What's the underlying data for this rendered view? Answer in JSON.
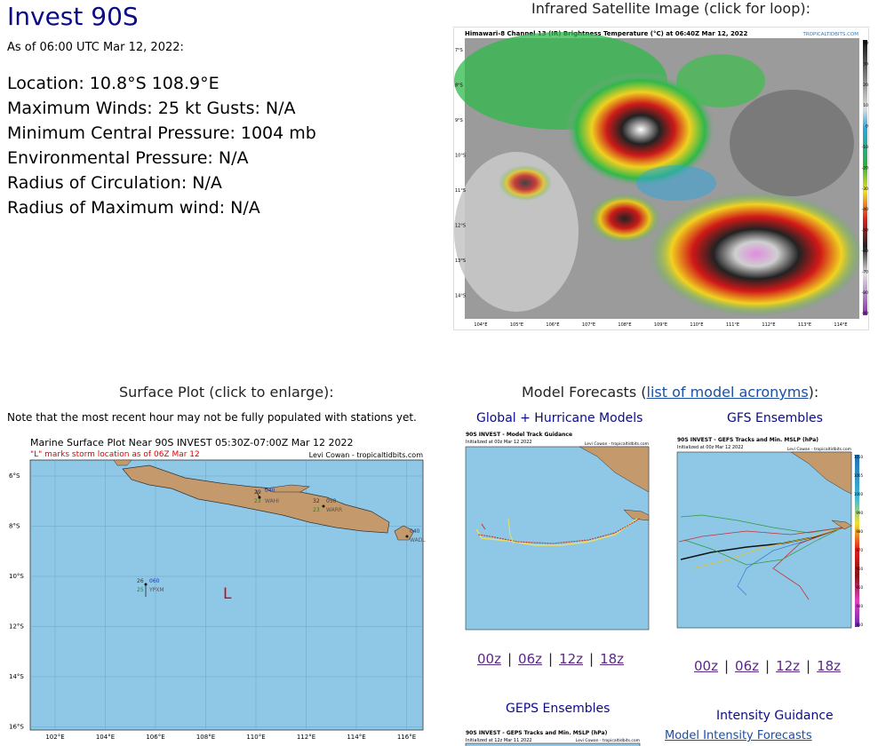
{
  "storm": {
    "title": "Invest 90S",
    "as_of": "As of 06:00 UTC Mar 12, 2022:",
    "location": "Location: 10.8°S 108.9°E",
    "winds": "Maximum Winds: 25 kt  Gusts: N/A",
    "pressure": "Minimum Central Pressure: 1004 mb",
    "env_pressure": "Environmental Pressure: N/A",
    "radius_circ": "Radius of Circulation: N/A",
    "radius_max": "Radius of Maximum wind: N/A"
  },
  "satellite": {
    "heading": "Infrared Satellite Image (click for loop):",
    "image_title": "Himawari-8 Channel 13 (IR) Brightness Temperature (°C) at 06:40Z Mar 12, 2022",
    "credit": "TROPICALTIDBITS.COM",
    "lat_labels": [
      "7°S",
      "8°S",
      "9°S",
      "10°S",
      "11°S",
      "12°S",
      "13°S",
      "14°S"
    ],
    "lon_labels": [
      "104°E",
      "105°E",
      "106°E",
      "107°E",
      "108°E",
      "109°E",
      "110°E",
      "111°E",
      "112°E",
      "113°E",
      "114°E"
    ],
    "scale_labels": [
      "40",
      "30",
      "20",
      "10",
      "0",
      "-10",
      "-20",
      "-30",
      "-40",
      "-50",
      "-60",
      "-70",
      "-80",
      "-90"
    ]
  },
  "surface": {
    "heading": "Surface Plot (click to enlarge):",
    "note": "Note that the most recent hour may not be fully populated with stations yet.",
    "plot_title": "Marine Surface Plot Near 90S INVEST 05:30Z-07:00Z Mar 12 2022",
    "plot_subtitle": "\"L\" marks storm location as of 06Z Mar 12",
    "credit": "Levi Cowan - tropicaltidbits.com",
    "storm_marker": "L",
    "lat_labels": [
      "6°S",
      "8°S",
      "10°S",
      "12°S",
      "14°S",
      "16°S"
    ],
    "lon_labels": [
      "102°E",
      "104°E",
      "106°E",
      "108°E",
      "110°E",
      "112°E",
      "114°E",
      "116°E"
    ],
    "stations": [
      {
        "id": "WAHI",
        "t": "29",
        "d": "23",
        "p": "040"
      },
      {
        "id": "WARR",
        "t": "32",
        "d": "23",
        "p": "050"
      },
      {
        "id": "YPXM",
        "t": "26",
        "d": "25",
        "p": "060"
      },
      {
        "id": "WADL",
        "t": "",
        "d": "",
        "p": "040"
      }
    ]
  },
  "models": {
    "heading_prefix": "Model Forecasts (",
    "heading_link": "list of model acronyms",
    "heading_suffix": "):",
    "global_title": "Global + Hurricane Models",
    "gfs_title": "GFS Ensembles",
    "geps_title": "GEPS Ensembles",
    "intensity_title": "Intensity Guidance",
    "intensity_link": "Model Intensity Forecasts",
    "runs": [
      "00z",
      "06z",
      "12z",
      "18z"
    ],
    "track_title": "90S INVEST - Model Track Guidance",
    "track_init": "Initialized at 00z Mar 12 2022",
    "gfs_map_title": "90S INVEST - GEFS Tracks and Min. MSLP (hPa)",
    "gfs_init": "Initialized at 00z Mar 12 2022",
    "geps_map_title": "90S INVEST - GEPS Tracks and Min. MSLP (hPa)",
    "geps_init": "Initialized at 12z Mar 11 2022",
    "map_credit": "Levi Cowan - tropicaltidbits.com",
    "gfs_scale": [
      "1010",
      "1005",
      "1000",
      "990",
      "980",
      "970",
      "960",
      "950",
      "940",
      "930"
    ]
  },
  "colors": {
    "title": "#0b0b8a",
    "ocean": "#8fc8e6",
    "land": "#c49a6c",
    "link": "#1a4fa3",
    "visited": "#5a2a83"
  }
}
